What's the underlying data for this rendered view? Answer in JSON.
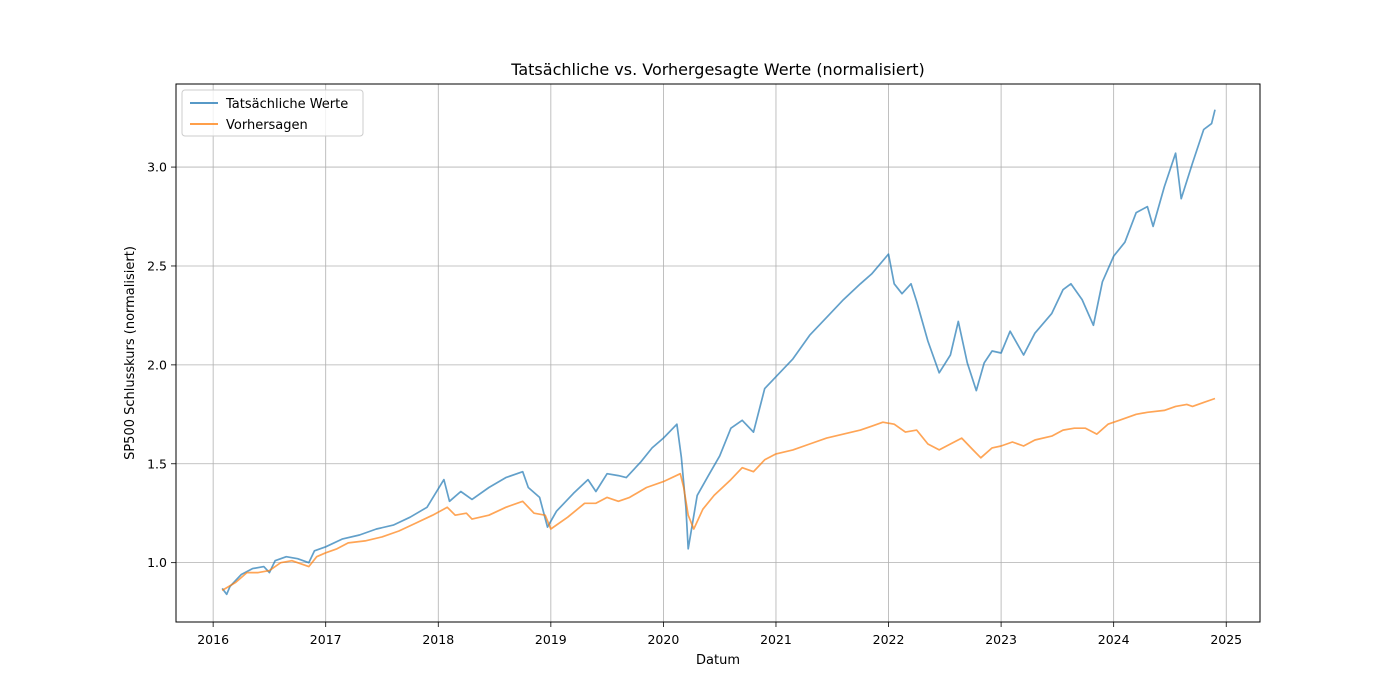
{
  "chart_data": {
    "type": "line",
    "title": "Tatsächliche vs. Vorhergesagte Werte (normalisiert)",
    "xlabel": "Datum",
    "ylabel": "SP500 Schlusskurs (normalisiert)",
    "xlim": [
      2015.67,
      2025.3
    ],
    "ylim": [
      0.7,
      3.42
    ],
    "x_ticks": [
      2016,
      2017,
      2018,
      2019,
      2020,
      2021,
      2022,
      2023,
      2024,
      2025
    ],
    "y_ticks": [
      1.0,
      1.5,
      2.0,
      2.5,
      3.0
    ],
    "y_tick_labels": [
      "1.0",
      "1.5",
      "2.0",
      "2.5",
      "3.0"
    ],
    "grid": true,
    "legend_position": "top-left",
    "series": [
      {
        "name": "Tatsächliche Werte",
        "color": "#1f77b4",
        "points": [
          [
            2016.08,
            0.87
          ],
          [
            2016.12,
            0.84
          ],
          [
            2016.15,
            0.88
          ],
          [
            2016.25,
            0.94
          ],
          [
            2016.35,
            0.97
          ],
          [
            2016.45,
            0.98
          ],
          [
            2016.5,
            0.95
          ],
          [
            2016.55,
            1.01
          ],
          [
            2016.65,
            1.03
          ],
          [
            2016.75,
            1.02
          ],
          [
            2016.85,
            1.0
          ],
          [
            2016.9,
            1.06
          ],
          [
            2017.0,
            1.08
          ],
          [
            2017.15,
            1.12
          ],
          [
            2017.3,
            1.14
          ],
          [
            2017.45,
            1.17
          ],
          [
            2017.6,
            1.19
          ],
          [
            2017.75,
            1.23
          ],
          [
            2017.9,
            1.28
          ],
          [
            2018.05,
            1.42
          ],
          [
            2018.1,
            1.31
          ],
          [
            2018.2,
            1.36
          ],
          [
            2018.3,
            1.32
          ],
          [
            2018.45,
            1.38
          ],
          [
            2018.6,
            1.43
          ],
          [
            2018.75,
            1.46
          ],
          [
            2018.8,
            1.38
          ],
          [
            2018.9,
            1.33
          ],
          [
            2018.97,
            1.18
          ],
          [
            2019.05,
            1.26
          ],
          [
            2019.2,
            1.35
          ],
          [
            2019.33,
            1.42
          ],
          [
            2019.4,
            1.36
          ],
          [
            2019.5,
            1.45
          ],
          [
            2019.6,
            1.44
          ],
          [
            2019.67,
            1.43
          ],
          [
            2019.8,
            1.51
          ],
          [
            2019.9,
            1.58
          ],
          [
            2020.0,
            1.63
          ],
          [
            2020.12,
            1.7
          ],
          [
            2020.16,
            1.53
          ],
          [
            2020.2,
            1.28
          ],
          [
            2020.22,
            1.07
          ],
          [
            2020.3,
            1.34
          ],
          [
            2020.4,
            1.44
          ],
          [
            2020.5,
            1.54
          ],
          [
            2020.6,
            1.68
          ],
          [
            2020.7,
            1.72
          ],
          [
            2020.8,
            1.66
          ],
          [
            2020.9,
            1.88
          ],
          [
            2021.0,
            1.94
          ],
          [
            2021.15,
            2.03
          ],
          [
            2021.3,
            2.15
          ],
          [
            2021.45,
            2.24
          ],
          [
            2021.6,
            2.33
          ],
          [
            2021.75,
            2.41
          ],
          [
            2021.85,
            2.46
          ],
          [
            2022.0,
            2.56
          ],
          [
            2022.05,
            2.41
          ],
          [
            2022.12,
            2.36
          ],
          [
            2022.2,
            2.41
          ],
          [
            2022.25,
            2.32
          ],
          [
            2022.35,
            2.12
          ],
          [
            2022.45,
            1.96
          ],
          [
            2022.55,
            2.05
          ],
          [
            2022.62,
            2.22
          ],
          [
            2022.7,
            2.01
          ],
          [
            2022.78,
            1.87
          ],
          [
            2022.85,
            2.01
          ],
          [
            2022.92,
            2.07
          ],
          [
            2023.0,
            2.06
          ],
          [
            2023.08,
            2.17
          ],
          [
            2023.2,
            2.05
          ],
          [
            2023.3,
            2.16
          ],
          [
            2023.45,
            2.26
          ],
          [
            2023.55,
            2.38
          ],
          [
            2023.62,
            2.41
          ],
          [
            2023.72,
            2.33
          ],
          [
            2023.82,
            2.2
          ],
          [
            2023.9,
            2.42
          ],
          [
            2024.0,
            2.55
          ],
          [
            2024.1,
            2.62
          ],
          [
            2024.2,
            2.77
          ],
          [
            2024.3,
            2.8
          ],
          [
            2024.35,
            2.7
          ],
          [
            2024.45,
            2.9
          ],
          [
            2024.55,
            3.07
          ],
          [
            2024.6,
            2.84
          ],
          [
            2024.7,
            3.02
          ],
          [
            2024.8,
            3.19
          ],
          [
            2024.87,
            3.22
          ],
          [
            2024.9,
            3.29
          ]
        ]
      },
      {
        "name": "Vorhersagen",
        "color": "#ff7f0e",
        "points": [
          [
            2016.08,
            0.86
          ],
          [
            2016.2,
            0.9
          ],
          [
            2016.3,
            0.95
          ],
          [
            2016.4,
            0.95
          ],
          [
            2016.5,
            0.96
          ],
          [
            2016.6,
            1.0
          ],
          [
            2016.7,
            1.01
          ],
          [
            2016.85,
            0.98
          ],
          [
            2016.92,
            1.03
          ],
          [
            2017.0,
            1.05
          ],
          [
            2017.1,
            1.07
          ],
          [
            2017.2,
            1.1
          ],
          [
            2017.35,
            1.11
          ],
          [
            2017.5,
            1.13
          ],
          [
            2017.65,
            1.16
          ],
          [
            2017.8,
            1.2
          ],
          [
            2017.95,
            1.24
          ],
          [
            2018.08,
            1.28
          ],
          [
            2018.15,
            1.24
          ],
          [
            2018.25,
            1.25
          ],
          [
            2018.3,
            1.22
          ],
          [
            2018.45,
            1.24
          ],
          [
            2018.6,
            1.28
          ],
          [
            2018.75,
            1.31
          ],
          [
            2018.85,
            1.25
          ],
          [
            2018.95,
            1.24
          ],
          [
            2019.0,
            1.17
          ],
          [
            2019.15,
            1.23
          ],
          [
            2019.3,
            1.3
          ],
          [
            2019.4,
            1.3
          ],
          [
            2019.5,
            1.33
          ],
          [
            2019.6,
            1.31
          ],
          [
            2019.7,
            1.33
          ],
          [
            2019.85,
            1.38
          ],
          [
            2020.0,
            1.41
          ],
          [
            2020.15,
            1.45
          ],
          [
            2020.18,
            1.38
          ],
          [
            2020.22,
            1.24
          ],
          [
            2020.27,
            1.17
          ],
          [
            2020.35,
            1.27
          ],
          [
            2020.45,
            1.34
          ],
          [
            2020.6,
            1.42
          ],
          [
            2020.7,
            1.48
          ],
          [
            2020.8,
            1.46
          ],
          [
            2020.9,
            1.52
          ],
          [
            2021.0,
            1.55
          ],
          [
            2021.15,
            1.57
          ],
          [
            2021.3,
            1.6
          ],
          [
            2021.45,
            1.63
          ],
          [
            2021.6,
            1.65
          ],
          [
            2021.75,
            1.67
          ],
          [
            2021.85,
            1.69
          ],
          [
            2021.95,
            1.71
          ],
          [
            2022.05,
            1.7
          ],
          [
            2022.15,
            1.66
          ],
          [
            2022.25,
            1.67
          ],
          [
            2022.35,
            1.6
          ],
          [
            2022.45,
            1.57
          ],
          [
            2022.55,
            1.6
          ],
          [
            2022.65,
            1.63
          ],
          [
            2022.75,
            1.57
          ],
          [
            2022.82,
            1.53
          ],
          [
            2022.92,
            1.58
          ],
          [
            2023.0,
            1.59
          ],
          [
            2023.1,
            1.61
          ],
          [
            2023.2,
            1.59
          ],
          [
            2023.3,
            1.62
          ],
          [
            2023.45,
            1.64
          ],
          [
            2023.55,
            1.67
          ],
          [
            2023.65,
            1.68
          ],
          [
            2023.75,
            1.68
          ],
          [
            2023.85,
            1.65
          ],
          [
            2023.95,
            1.7
          ],
          [
            2024.05,
            1.72
          ],
          [
            2024.2,
            1.75
          ],
          [
            2024.3,
            1.76
          ],
          [
            2024.45,
            1.77
          ],
          [
            2024.55,
            1.79
          ],
          [
            2024.65,
            1.8
          ],
          [
            2024.7,
            1.79
          ],
          [
            2024.8,
            1.81
          ],
          [
            2024.9,
            1.83
          ]
        ]
      }
    ]
  }
}
